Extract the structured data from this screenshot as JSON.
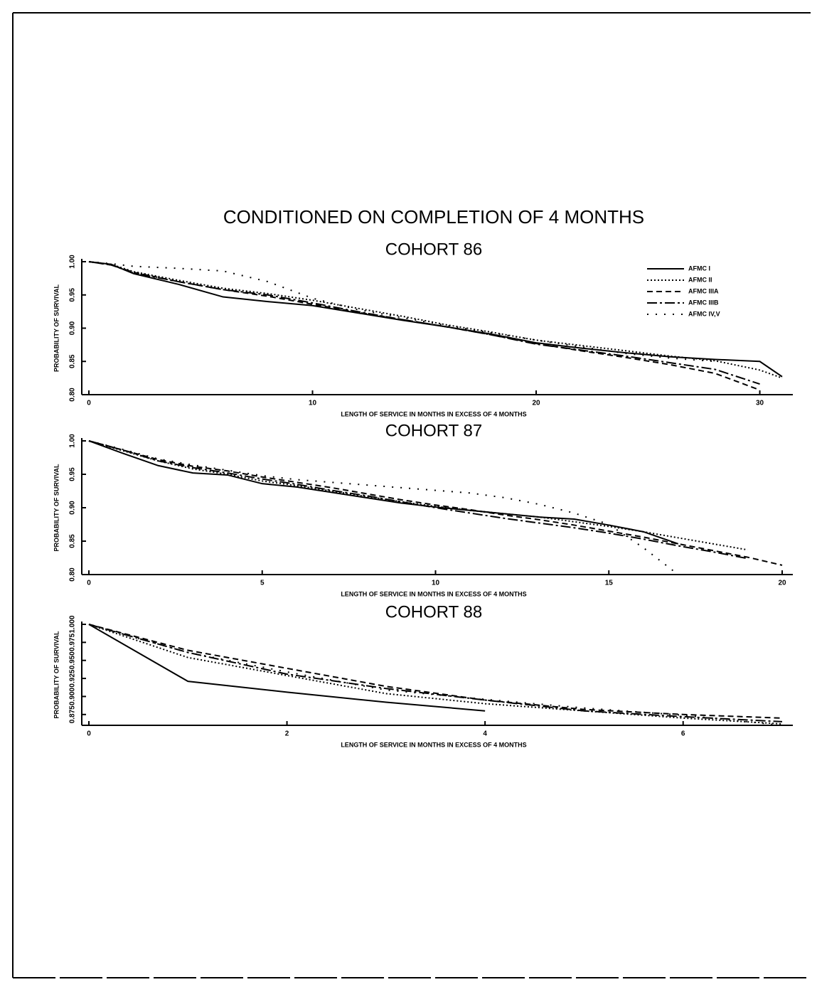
{
  "title": "CONDITIONED ON COMPLETION OF 4 MONTHS",
  "chart_data": [
    {
      "type": "line",
      "title": "COHORT 86",
      "xlabel": "LENGTH OF SERVICE IN MONTHS IN EXCESS OF 4 MONTHS",
      "ylabel": "PROBABILITY OF SURVIVAL",
      "x": [
        0,
        1,
        2,
        4,
        6,
        8,
        10,
        12,
        14,
        16,
        18,
        20,
        22,
        24,
        26,
        28,
        30,
        31
      ],
      "xlim": [
        0,
        31
      ],
      "xticks": [
        0,
        10,
        20,
        30
      ],
      "ylim": [
        0.8,
        1.0
      ],
      "yticks": [
        {
          "value": 0.8,
          "label": "0.80"
        },
        {
          "value": 0.85,
          "label": "0.85"
        },
        {
          "value": 0.9,
          "label": "0.90"
        },
        {
          "value": 0.95,
          "label": "0.95"
        },
        {
          "value": 1.0,
          "label": "1.00"
        }
      ],
      "legend": "upper right",
      "series": [
        {
          "name": "AFMC I",
          "color": "#000000",
          "dash": "solid",
          "values": [
            1.0,
            0.996,
            0.982,
            0.966,
            0.947,
            0.94,
            0.934,
            0.923,
            0.912,
            0.902,
            0.891,
            0.878,
            0.87,
            0.863,
            0.857,
            0.853,
            0.85,
            0.827
          ]
        },
        {
          "name": "AFMC II",
          "color": "#000000",
          "dash": "dotted",
          "values": [
            1.0,
            0.996,
            0.985,
            0.972,
            0.96,
            0.952,
            0.942,
            0.93,
            0.918,
            0.905,
            0.894,
            0.882,
            0.874,
            0.866,
            0.858,
            0.851,
            0.837,
            0.825
          ]
        },
        {
          "name": "AFMC IIIA",
          "color": "#000000",
          "dash": "dashed",
          "values": [
            1.0,
            0.995,
            0.984,
            0.97,
            0.958,
            0.948,
            0.936,
            0.924,
            0.913,
            0.902,
            0.89,
            0.877,
            0.866,
            0.856,
            0.845,
            0.832,
            0.807,
            null
          ]
        },
        {
          "name": "AFMC IIIB",
          "color": "#000000",
          "dash": "dashdot",
          "values": [
            1.0,
            0.995,
            0.983,
            0.97,
            0.958,
            0.95,
            0.938,
            0.925,
            0.913,
            0.902,
            0.89,
            0.876,
            0.867,
            0.858,
            0.848,
            0.838,
            0.816,
            null
          ]
        },
        {
          "name": "AFMC IV,V",
          "color": "#000000",
          "dash": "sparse",
          "values": [
            1.0,
            0.997,
            0.993,
            0.99,
            0.986,
            0.97,
            0.945,
            0.928,
            0.916,
            0.904,
            0.893,
            0.882,
            0.872,
            0.862,
            0.855,
            0.85,
            null,
            null
          ]
        }
      ]
    },
    {
      "type": "line",
      "title": "COHORT 87",
      "xlabel": "LENGTH OF SERVICE IN MONTHS IN EXCESS OF 4 MONTHS",
      "ylabel": "PROBABILITY OF SURVIVAL",
      "x": [
        0,
        1,
        2,
        3,
        4,
        5,
        6,
        7,
        8,
        9,
        10,
        11,
        12,
        13,
        14,
        15,
        16,
        17,
        18,
        19,
        20
      ],
      "xlim": [
        0,
        20
      ],
      "xticks": [
        0,
        5,
        10,
        15,
        20
      ],
      "ylim": [
        0.8,
        1.0
      ],
      "yticks": [
        {
          "value": 0.8,
          "label": "0.80"
        },
        {
          "value": 0.85,
          "label": "0.85"
        },
        {
          "value": 0.9,
          "label": "0.90"
        },
        {
          "value": 0.95,
          "label": "0.95"
        },
        {
          "value": 1.0,
          "label": "1.00"
        }
      ],
      "series": [
        {
          "color": "#000000",
          "dash": "solid",
          "values": [
            1.0,
            0.981,
            0.963,
            0.952,
            0.949,
            0.936,
            0.931,
            0.923,
            0.915,
            0.907,
            0.901,
            0.896,
            0.891,
            0.886,
            0.883,
            0.874,
            0.864,
            0.846,
            null,
            null,
            null
          ]
        },
        {
          "color": "#000000",
          "dash": "dotted",
          "values": [
            1.0,
            0.985,
            0.97,
            0.958,
            0.95,
            0.94,
            0.933,
            0.925,
            0.917,
            0.909,
            0.902,
            0.896,
            0.891,
            0.886,
            0.879,
            0.872,
            0.864,
            0.855,
            0.846,
            0.837,
            null
          ]
        },
        {
          "color": "#000000",
          "dash": "dashed",
          "values": [
            1.0,
            0.986,
            0.972,
            0.962,
            0.955,
            0.946,
            0.938,
            0.93,
            0.921,
            0.912,
            0.904,
            0.897,
            0.889,
            0.882,
            0.874,
            0.865,
            0.856,
            0.846,
            0.836,
            0.826,
            0.814
          ]
        },
        {
          "color": "#000000",
          "dash": "dashdot",
          "values": [
            1.0,
            0.986,
            0.97,
            0.96,
            0.952,
            0.943,
            0.935,
            0.926,
            0.918,
            0.909,
            0.9,
            0.892,
            0.884,
            0.877,
            0.87,
            0.862,
            0.853,
            0.843,
            0.834,
            0.824,
            null
          ]
        },
        {
          "color": "#000000",
          "dash": "sparse",
          "values": [
            1.0,
            0.987,
            0.973,
            0.964,
            0.956,
            0.948,
            0.942,
            0.938,
            0.934,
            0.93,
            0.926,
            0.922,
            0.915,
            0.905,
            0.892,
            0.875,
            0.84,
            0.8,
            null,
            null,
            null
          ]
        }
      ]
    },
    {
      "type": "line",
      "title": "COHORT 88",
      "xlabel": "LENGTH OF SERVICE IN MONTHS IN EXCESS OF 4 MONTHS",
      "ylabel": "PROBABILITY OF SURVIVAL",
      "x": [
        0,
        1,
        2,
        3,
        4,
        5,
        6,
        7
      ],
      "xlim": [
        0,
        7
      ],
      "xticks": [
        0,
        2,
        4,
        6
      ],
      "ylim": [
        0.86,
        1.0
      ],
      "yticks": [
        {
          "value": 0.875,
          "label": "0.875"
        },
        {
          "value": 0.9,
          "label": "0.900"
        },
        {
          "value": 0.925,
          "label": "0.925"
        },
        {
          "value": 0.95,
          "label": "0.950"
        },
        {
          "value": 0.975,
          "label": "0.975"
        },
        {
          "value": 1.0,
          "label": "1.000"
        }
      ],
      "series": [
        {
          "color": "#000000",
          "dash": "solid",
          "values": [
            1.0,
            0.921,
            0.906,
            0.892,
            0.88,
            null,
            null,
            null
          ]
        },
        {
          "color": "#000000",
          "dash": "dotted",
          "values": [
            1.0,
            0.954,
            0.929,
            0.904,
            0.89,
            0.88,
            0.87,
            0.862
          ]
        },
        {
          "color": "#000000",
          "dash": "dashed",
          "values": [
            1.0,
            0.964,
            0.939,
            0.914,
            0.895,
            0.882,
            0.875,
            0.87
          ]
        },
        {
          "color": "#000000",
          "dash": "dashdot",
          "values": [
            1.0,
            0.961,
            0.931,
            0.911,
            0.895,
            0.88,
            0.872,
            0.865
          ]
        },
        {
          "color": "#000000",
          "dash": "sparse",
          "values": [
            1.0,
            0.961,
            0.934,
            0.909,
            0.896,
            0.884,
            0.874,
            0.86
          ]
        }
      ]
    }
  ]
}
